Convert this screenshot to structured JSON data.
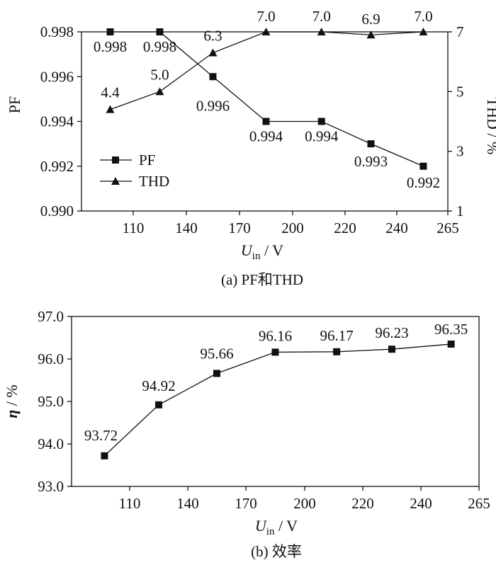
{
  "chart_data": [
    {
      "type": "line",
      "caption": "(a)  PF和THD",
      "x_categories": [
        "110",
        "140",
        "170",
        "200",
        "220",
        "240",
        "265"
      ],
      "xlabel": {
        "main": "U",
        "sub": "in",
        "unit": " / V"
      },
      "ylabel_left": "PF",
      "ylabel_right": "THD / %",
      "ylim_left": [
        0.99,
        0.998
      ],
      "yticks_left": [
        "0.990",
        "0.992",
        "0.994",
        "0.996",
        "0.998"
      ],
      "ylim_right": [
        1,
        7
      ],
      "yticks_right": [
        "1",
        "3",
        "5",
        "7"
      ],
      "legend": {
        "placement": "left-lower",
        "entries": [
          "PF",
          "THD"
        ]
      },
      "series": [
        {
          "name": "PF",
          "axis": "left",
          "marker": "square",
          "x": [
            97,
            125,
            155,
            185,
            211,
            230,
            253
          ],
          "values": [
            0.998,
            0.998,
            0.996,
            0.994,
            0.994,
            0.993,
            0.992
          ],
          "labels": [
            "0.998",
            "0.998",
            "0.996",
            "0.994",
            "0.994",
            "0.993",
            "0.992"
          ]
        },
        {
          "name": "THD",
          "axis": "right",
          "marker": "triangle",
          "x": [
            97,
            125,
            155,
            185,
            211,
            230,
            253
          ],
          "values": [
            4.4,
            5.0,
            6.3,
            7.0,
            7.0,
            6.9,
            7.0
          ],
          "labels": [
            "4.4",
            "5.0",
            "6.3",
            "7.0",
            "7.0",
            "6.9",
            "7.0"
          ]
        }
      ]
    },
    {
      "type": "line",
      "caption": "(b)  效率",
      "x_categories": [
        "110",
        "140",
        "170",
        "200",
        "220",
        "240",
        "265"
      ],
      "xlabel": {
        "main": "U",
        "sub": "in",
        "unit": " / V"
      },
      "ylabel": {
        "main": "η",
        "unit": " / %"
      },
      "ylim": [
        93,
        97
      ],
      "yticks": [
        "93.0",
        "94.0",
        "95.0",
        "96.0",
        "97.0"
      ],
      "series": [
        {
          "name": "η",
          "marker": "square",
          "x": [
            97,
            125,
            155,
            185,
            211,
            230,
            253
          ],
          "values": [
            93.72,
            94.92,
            95.66,
            96.16,
            96.17,
            96.23,
            96.35
          ],
          "labels": [
            "93.72",
            "94.92",
            "95.66",
            "96.16",
            "96.17",
            "96.23",
            "96.35"
          ]
        }
      ]
    }
  ]
}
